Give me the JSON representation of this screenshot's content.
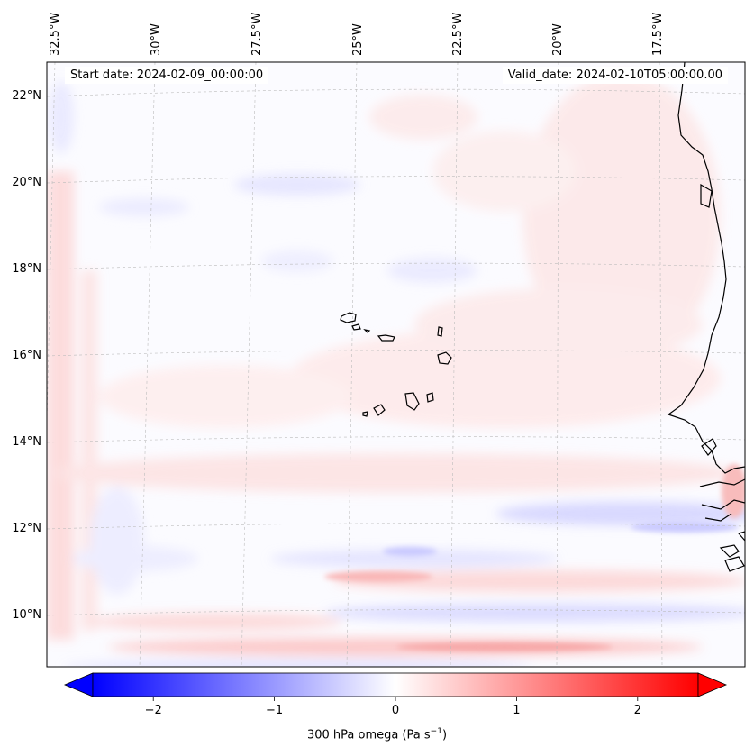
{
  "map": {
    "start_date_text": "Start date: 2024-02-09_00:00:00",
    "valid_date_text": "Valid_date: 2024-02-10T05:00:00.00",
    "lon_labels": [
      "32.5°W",
      "30°W",
      "27.5°W",
      "25°W",
      "22.5°W",
      "20°W",
      "17.5°W"
    ],
    "lat_labels": [
      "22°N",
      "20°N",
      "18°N",
      "16°N",
      "14°N",
      "12°N",
      "10°N"
    ],
    "field_colors": {
      "neg_strong": "#3a3aff",
      "neg_light": "#e6e6ff",
      "pos_light": "#ffe6e6",
      "pos_strong": "#ff6a6a"
    },
    "coastline_color": "#000000"
  },
  "colorbar": {
    "tick_labels": [
      "−2",
      "−1",
      "0",
      "1",
      "2"
    ],
    "tick_values": [
      -2,
      -1,
      0,
      1,
      2
    ],
    "range": [
      -2.5,
      2.5
    ],
    "label_main": "300 hPa omega (Pa s",
    "label_sup": "−1",
    "label_end": ")",
    "cmap_low": "#0000ff",
    "cmap_mid": "#ffffff",
    "cmap_high": "#ff0000"
  }
}
